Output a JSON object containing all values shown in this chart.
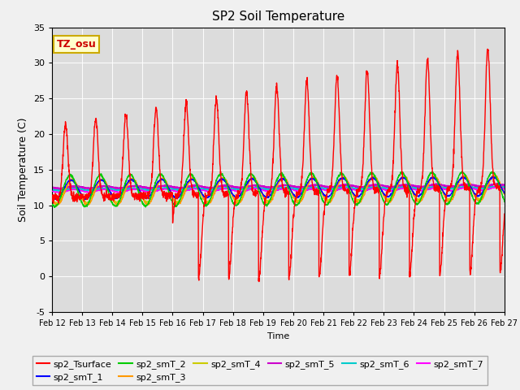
{
  "title": "SP2 Soil Temperature",
  "ylabel": "Soil Temperature (C)",
  "xlabel": "Time",
  "ylim": [
    -5,
    35
  ],
  "background_color": "#dcdcdc",
  "annotation_text": "TZ_osu",
  "annotation_bg": "#ffffcc",
  "annotation_border": "#ccaa00",
  "annotation_text_color": "#cc0000",
  "series": {
    "sp2_Tsurface": {
      "color": "#ff0000",
      "lw": 1.0
    },
    "sp2_smT_1": {
      "color": "#0000ff",
      "lw": 1.0
    },
    "sp2_smT_2": {
      "color": "#00cc00",
      "lw": 1.0
    },
    "sp2_smT_3": {
      "color": "#ff9900",
      "lw": 1.0
    },
    "sp2_smT_4": {
      "color": "#cccc00",
      "lw": 1.0
    },
    "sp2_smT_5": {
      "color": "#cc00cc",
      "lw": 1.5
    },
    "sp2_smT_6": {
      "color": "#00cccc",
      "lw": 1.5
    },
    "sp2_smT_7": {
      "color": "#ff00ff",
      "lw": 1.0
    }
  },
  "xtick_labels": [
    "Feb 12",
    "Feb 13",
    "Feb 14",
    "Feb 15",
    "Feb 16",
    "Feb 17",
    "Feb 18",
    "Feb 19",
    "Feb 20",
    "Feb 21",
    "Feb 22",
    "Feb 23",
    "Feb 24",
    "Feb 25",
    "Feb 26",
    "Feb 27"
  ],
  "ytick_labels": [
    -5,
    0,
    5,
    10,
    15,
    20,
    25,
    30,
    35
  ]
}
